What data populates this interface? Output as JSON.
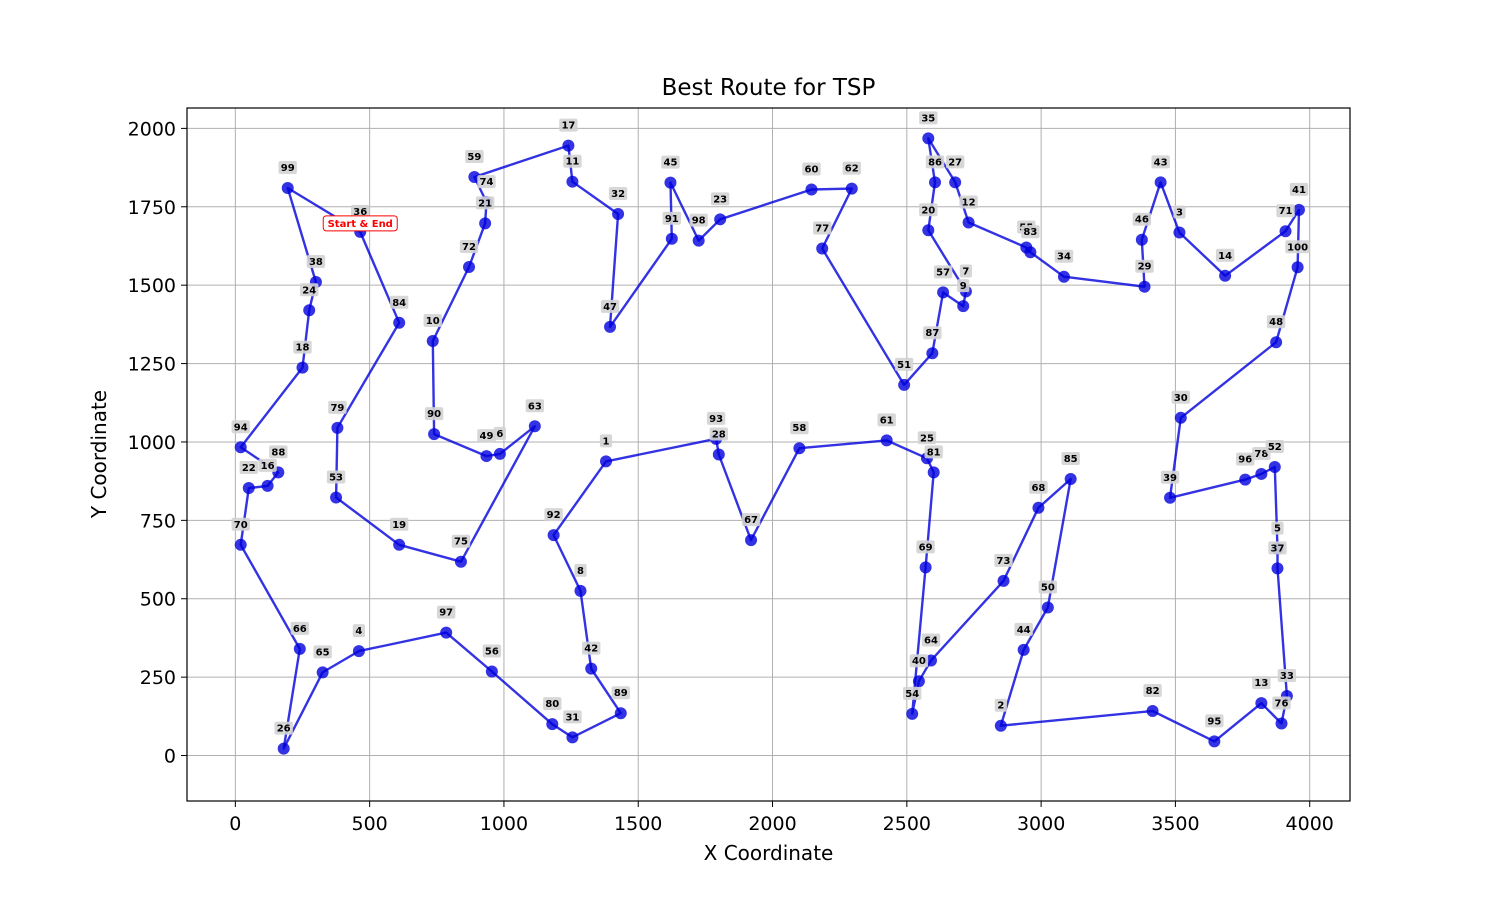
{
  "chart_data": {
    "type": "line",
    "title": "Best Route for TSP",
    "xlabel": "X Coordinate",
    "ylabel": "Y Coordinate",
    "xlim": [
      -180,
      4150
    ],
    "ylim": [
      -145,
      2065
    ],
    "xticks": [
      0,
      500,
      1000,
      1500,
      2000,
      2500,
      3000,
      3500,
      4000
    ],
    "yticks": [
      0,
      250,
      500,
      750,
      1000,
      1250,
      1500,
      1750,
      2000
    ],
    "grid": true,
    "line_color": "#0000dd",
    "start_annotation": "Start & End",
    "start_node": "36",
    "route": [
      {
        "id": "36",
        "x": 465,
        "y": 1670
      },
      {
        "id": "84",
        "x": 610,
        "y": 1380
      },
      {
        "id": "79",
        "x": 380,
        "y": 1045
      },
      {
        "id": "53",
        "x": 375,
        "y": 823
      },
      {
        "id": "19",
        "x": 610,
        "y": 672
      },
      {
        "id": "75",
        "x": 840,
        "y": 618
      },
      {
        "id": "63",
        "x": 1115,
        "y": 1050
      },
      {
        "id": "6",
        "x": 985,
        "y": 962
      },
      {
        "id": "49",
        "x": 935,
        "y": 955
      },
      {
        "id": "90",
        "x": 740,
        "y": 1025
      },
      {
        "id": "10",
        "x": 735,
        "y": 1322
      },
      {
        "id": "72",
        "x": 870,
        "y": 1558
      },
      {
        "id": "21",
        "x": 930,
        "y": 1697
      },
      {
        "id": "74",
        "x": 935,
        "y": 1765
      },
      {
        "id": "59",
        "x": 890,
        "y": 1845
      },
      {
        "id": "17",
        "x": 1240,
        "y": 1945
      },
      {
        "id": "11",
        "x": 1255,
        "y": 1830
      },
      {
        "id": "32",
        "x": 1425,
        "y": 1727
      },
      {
        "id": "47",
        "x": 1395,
        "y": 1367
      },
      {
        "id": "91",
        "x": 1625,
        "y": 1648
      },
      {
        "id": "45",
        "x": 1620,
        "y": 1827
      },
      {
        "id": "98",
        "x": 1725,
        "y": 1642
      },
      {
        "id": "23",
        "x": 1805,
        "y": 1710
      },
      {
        "id": "60",
        "x": 2145,
        "y": 1805
      },
      {
        "id": "62",
        "x": 2295,
        "y": 1808
      },
      {
        "id": "77",
        "x": 2185,
        "y": 1617
      },
      {
        "id": "51",
        "x": 2490,
        "y": 1182
      },
      {
        "id": "87",
        "x": 2595,
        "y": 1283
      },
      {
        "id": "57",
        "x": 2635,
        "y": 1477
      },
      {
        "id": "9",
        "x": 2710,
        "y": 1433
      },
      {
        "id": "7",
        "x": 2720,
        "y": 1480
      },
      {
        "id": "20",
        "x": 2580,
        "y": 1675
      },
      {
        "id": "86",
        "x": 2605,
        "y": 1828
      },
      {
        "id": "35",
        "x": 2580,
        "y": 1968
      },
      {
        "id": "27",
        "x": 2680,
        "y": 1828
      },
      {
        "id": "12",
        "x": 2730,
        "y": 1700
      },
      {
        "id": "55",
        "x": 2945,
        "y": 1620
      },
      {
        "id": "83",
        "x": 2960,
        "y": 1605
      },
      {
        "id": "34",
        "x": 3085,
        "y": 1527
      },
      {
        "id": "29",
        "x": 3385,
        "y": 1495
      },
      {
        "id": "46",
        "x": 3375,
        "y": 1645
      },
      {
        "id": "43",
        "x": 3445,
        "y": 1828
      },
      {
        "id": "3",
        "x": 3515,
        "y": 1668
      },
      {
        "id": "14",
        "x": 3685,
        "y": 1530
      },
      {
        "id": "71",
        "x": 3910,
        "y": 1672
      },
      {
        "id": "41",
        "x": 3960,
        "y": 1740
      },
      {
        "id": "100",
        "x": 3955,
        "y": 1557
      },
      {
        "id": "48",
        "x": 3875,
        "y": 1318
      },
      {
        "id": "30",
        "x": 3520,
        "y": 1077
      },
      {
        "id": "39",
        "x": 3480,
        "y": 822
      },
      {
        "id": "96",
        "x": 3760,
        "y": 880
      },
      {
        "id": "78",
        "x": 3820,
        "y": 898
      },
      {
        "id": "52",
        "x": 3870,
        "y": 920
      },
      {
        "id": "5",
        "x": 3880,
        "y": 660
      },
      {
        "id": "37",
        "x": 3880,
        "y": 597
      },
      {
        "id": "33",
        "x": 3915,
        "y": 190
      },
      {
        "id": "76",
        "x": 3895,
        "y": 102
      },
      {
        "id": "13",
        "x": 3820,
        "y": 167
      },
      {
        "id": "95",
        "x": 3645,
        "y": 45
      },
      {
        "id": "82",
        "x": 3415,
        "y": 142
      },
      {
        "id": "2",
        "x": 2850,
        "y": 95
      },
      {
        "id": "44",
        "x": 2935,
        "y": 337
      },
      {
        "id": "50",
        "x": 3025,
        "y": 472
      },
      {
        "id": "85",
        "x": 3110,
        "y": 882
      },
      {
        "id": "68",
        "x": 2990,
        "y": 790
      },
      {
        "id": "73",
        "x": 2860,
        "y": 557
      },
      {
        "id": "64",
        "x": 2590,
        "y": 303
      },
      {
        "id": "40",
        "x": 2545,
        "y": 237
      },
      {
        "id": "54",
        "x": 2520,
        "y": 133
      },
      {
        "id": "69",
        "x": 2570,
        "y": 600
      },
      {
        "id": "81",
        "x": 2600,
        "y": 903
      },
      {
        "id": "25",
        "x": 2575,
        "y": 948
      },
      {
        "id": "61",
        "x": 2425,
        "y": 1005
      },
      {
        "id": "58",
        "x": 2100,
        "y": 980
      },
      {
        "id": "67",
        "x": 1920,
        "y": 687
      },
      {
        "id": "28",
        "x": 1800,
        "y": 960
      },
      {
        "id": "93",
        "x": 1790,
        "y": 1010
      },
      {
        "id": "1",
        "x": 1380,
        "y": 938
      },
      {
        "id": "92",
        "x": 1185,
        "y": 703
      },
      {
        "id": "8",
        "x": 1285,
        "y": 525
      },
      {
        "id": "42",
        "x": 1325,
        "y": 277
      },
      {
        "id": "89",
        "x": 1435,
        "y": 135
      },
      {
        "id": "31",
        "x": 1255,
        "y": 58
      },
      {
        "id": "80",
        "x": 1180,
        "y": 100
      },
      {
        "id": "56",
        "x": 955,
        "y": 268
      },
      {
        "id": "97",
        "x": 785,
        "y": 392
      },
      {
        "id": "4",
        "x": 460,
        "y": 333
      },
      {
        "id": "65",
        "x": 325,
        "y": 265
      },
      {
        "id": "26",
        "x": 180,
        "y": 22
      },
      {
        "id": "66",
        "x": 240,
        "y": 340
      },
      {
        "id": "70",
        "x": 20,
        "y": 672
      },
      {
        "id": "22",
        "x": 50,
        "y": 853
      },
      {
        "id": "16",
        "x": 120,
        "y": 860
      },
      {
        "id": "88",
        "x": 160,
        "y": 903
      },
      {
        "id": "94",
        "x": 20,
        "y": 983
      },
      {
        "id": "18",
        "x": 250,
        "y": 1237
      },
      {
        "id": "24",
        "x": 275,
        "y": 1420
      },
      {
        "id": "38",
        "x": 300,
        "y": 1510
      },
      {
        "id": "99",
        "x": 195,
        "y": 1810
      }
    ]
  }
}
